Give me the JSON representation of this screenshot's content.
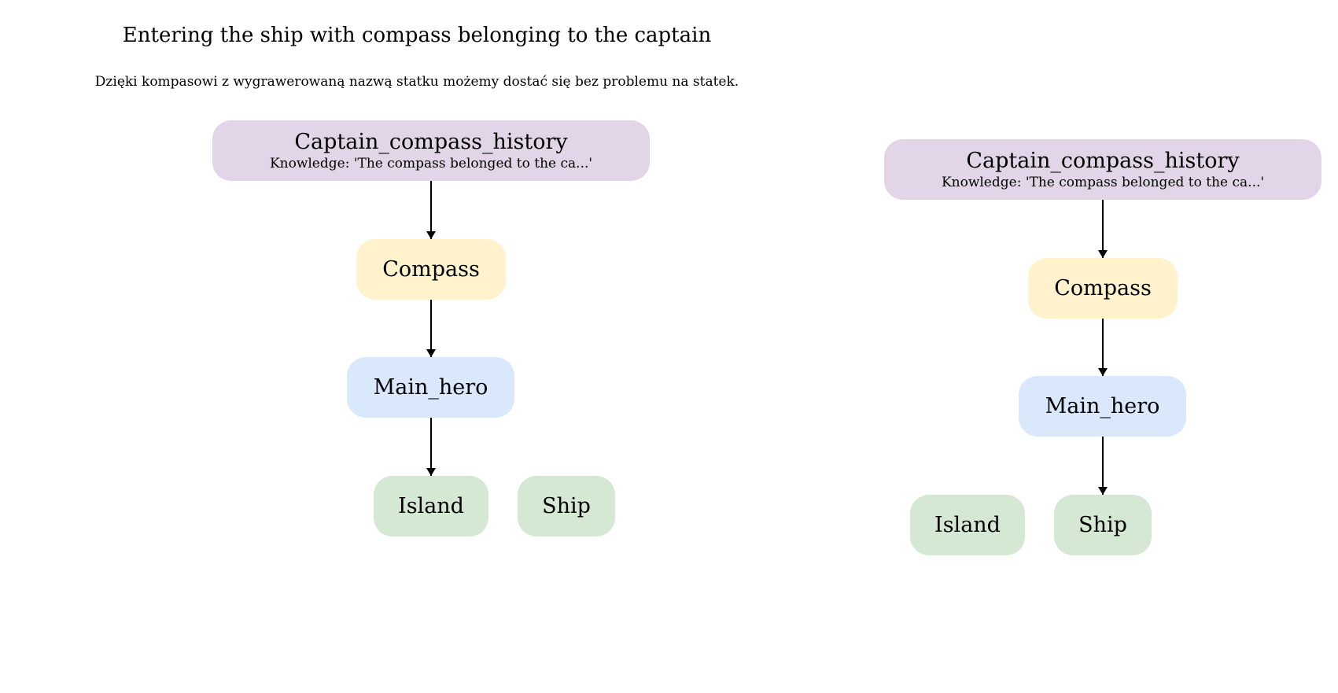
{
  "title": "Entering the ship with compass belonging to the captain",
  "subtitle": "Dzięki kompasowi z wygrawerowaną nazwą statku możemy dostać się bez problemu na statek.",
  "colors": {
    "history": "#e1d5e7",
    "compass": "#fff2cc",
    "hero": "#dae8fc",
    "location": "#d5e8d4",
    "edge": "#000000"
  },
  "graphs": [
    {
      "nodes": {
        "history": {
          "label": "Captain_compass_history",
          "sub": "Knowledge: 'The compass belonged to the ca...'"
        },
        "compass": {
          "label": "Compass"
        },
        "hero": {
          "label": "Main_hero"
        },
        "island": {
          "label": "Island"
        },
        "ship": {
          "label": "Ship"
        }
      },
      "edges": [
        {
          "from": "history",
          "to": "compass"
        },
        {
          "from": "compass",
          "to": "hero"
        },
        {
          "from": "hero",
          "to": "island"
        }
      ]
    },
    {
      "nodes": {
        "history": {
          "label": "Captain_compass_history",
          "sub": "Knowledge: 'The compass belonged to the ca...'"
        },
        "compass": {
          "label": "Compass"
        },
        "hero": {
          "label": "Main_hero"
        },
        "island": {
          "label": "Island"
        },
        "ship": {
          "label": "Ship"
        }
      },
      "edges": [
        {
          "from": "history",
          "to": "compass"
        },
        {
          "from": "compass",
          "to": "hero"
        },
        {
          "from": "hero",
          "to": "ship"
        }
      ]
    }
  ]
}
